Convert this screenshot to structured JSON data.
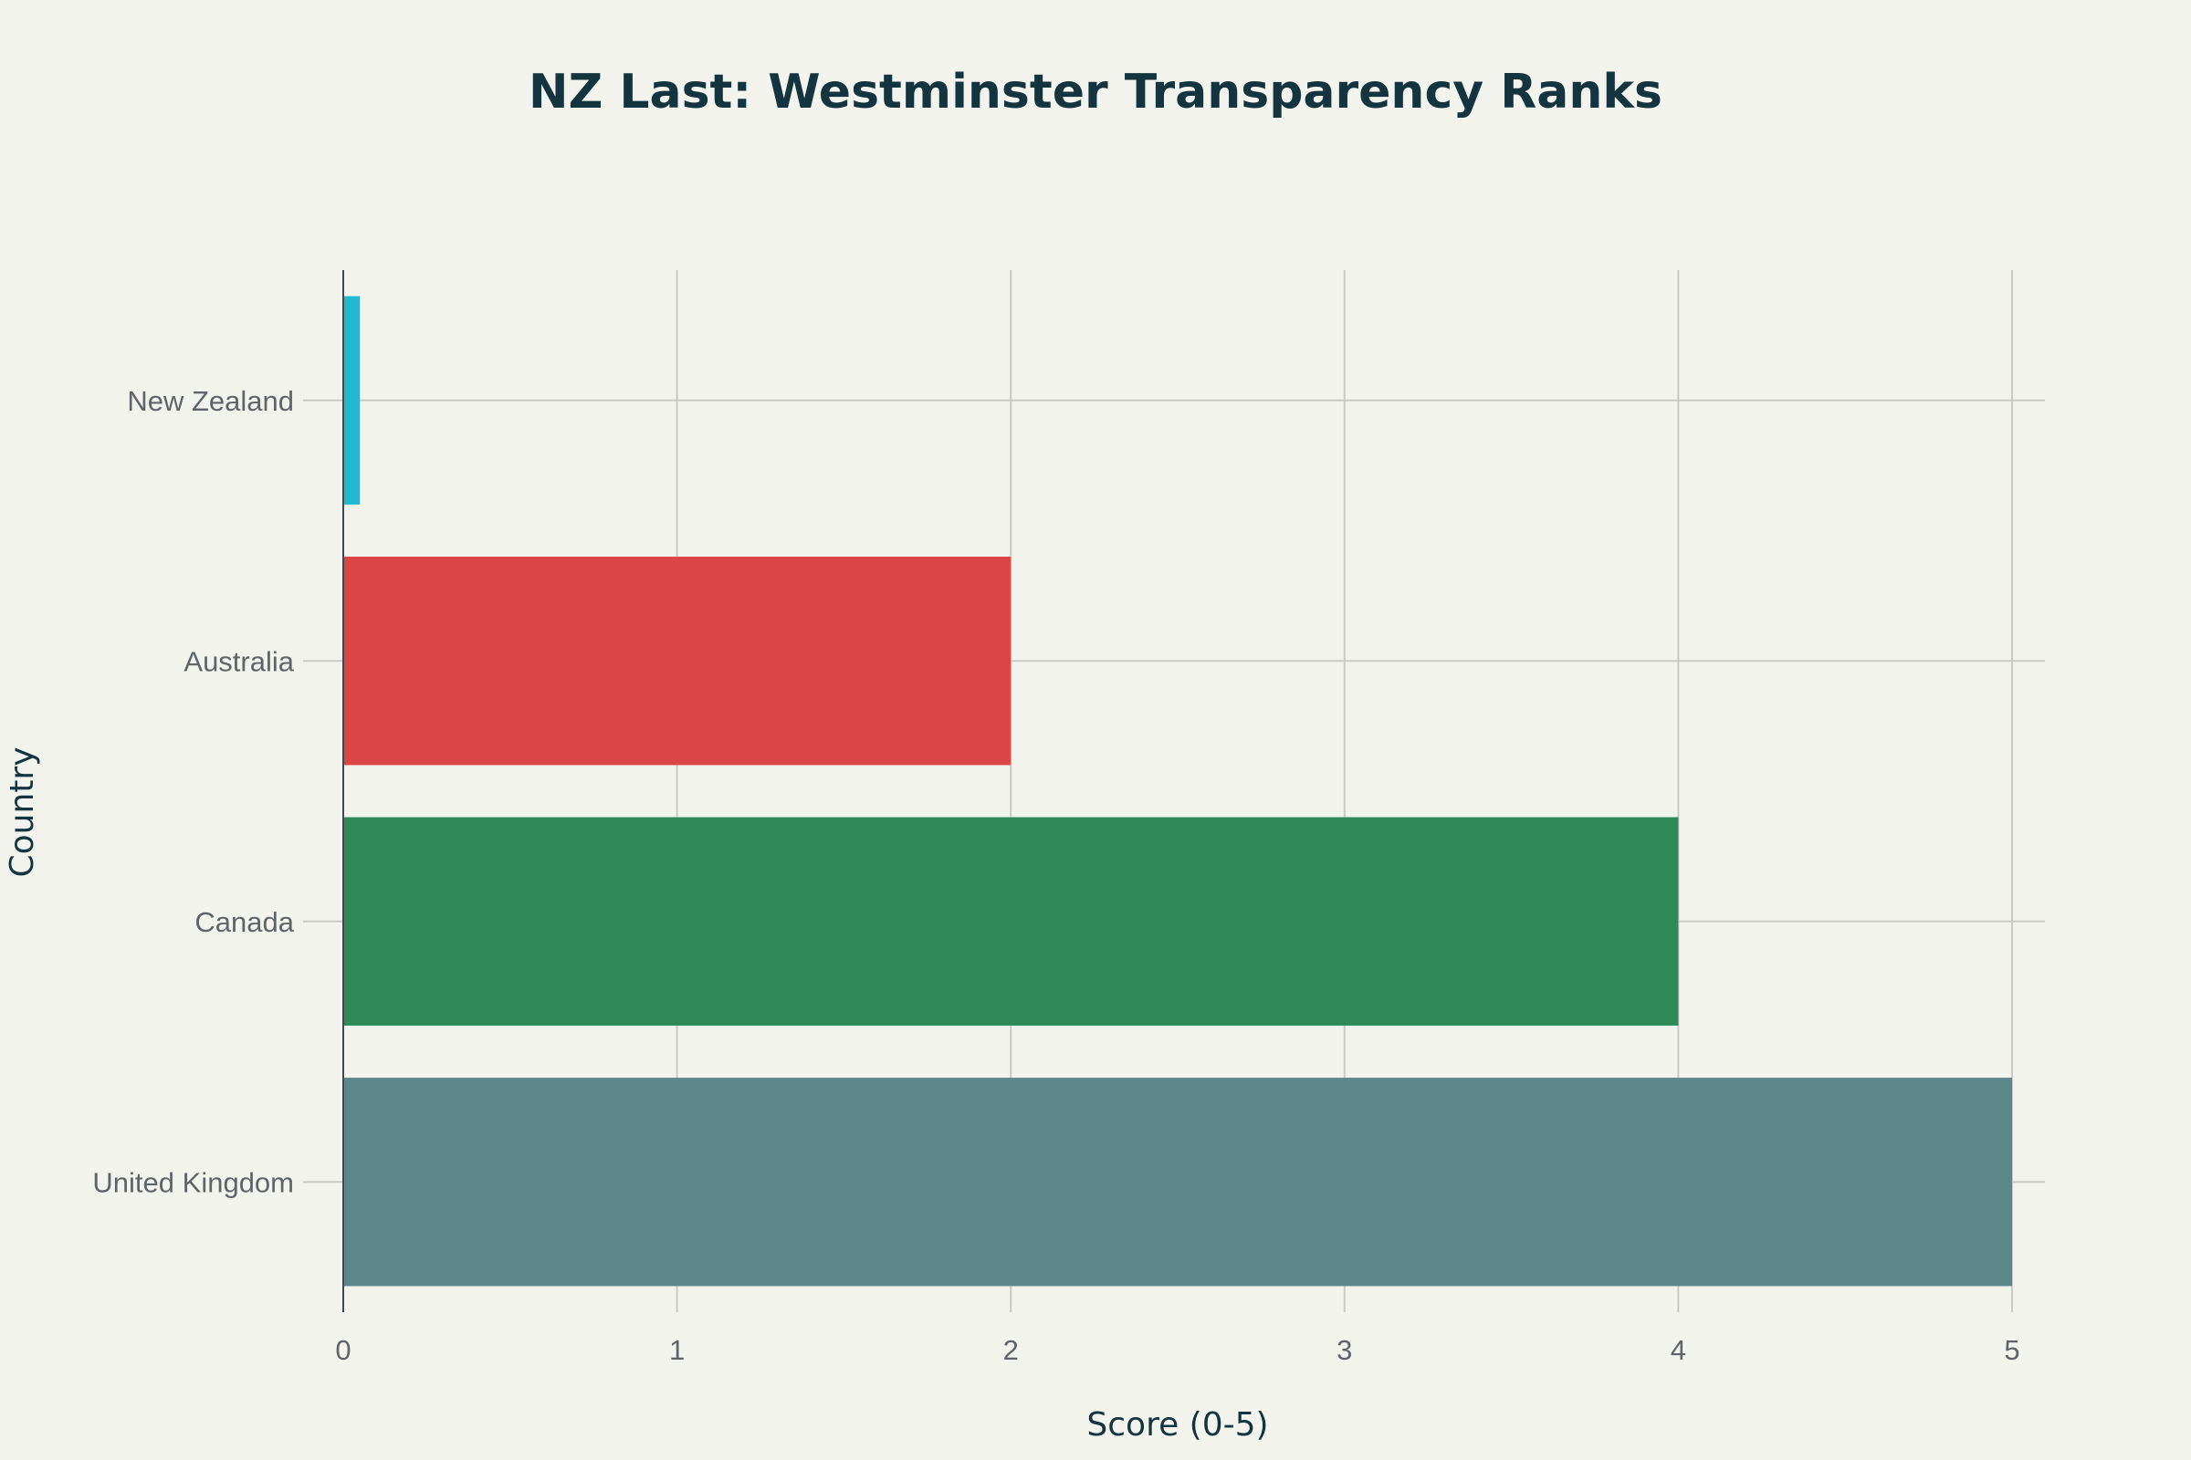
{
  "chart_data": {
    "type": "bar",
    "orientation": "horizontal",
    "title": "NZ Last: Westminster Transparency Ranks",
    "xlabel": "Score (0-5)",
    "ylabel": "Country",
    "xlim": [
      0,
      5
    ],
    "x_ticks": [
      "0",
      "1",
      "2",
      "3",
      "4",
      "5"
    ],
    "categories": [
      "New Zealand",
      "Australia",
      "Canada",
      "United Kingdom"
    ],
    "values": [
      0.05,
      2,
      4,
      5
    ],
    "colors": [
      "#22b8d0",
      "#db4545",
      "#2e8b57",
      "#5e878c"
    ],
    "grid": true,
    "legend": "none"
  }
}
